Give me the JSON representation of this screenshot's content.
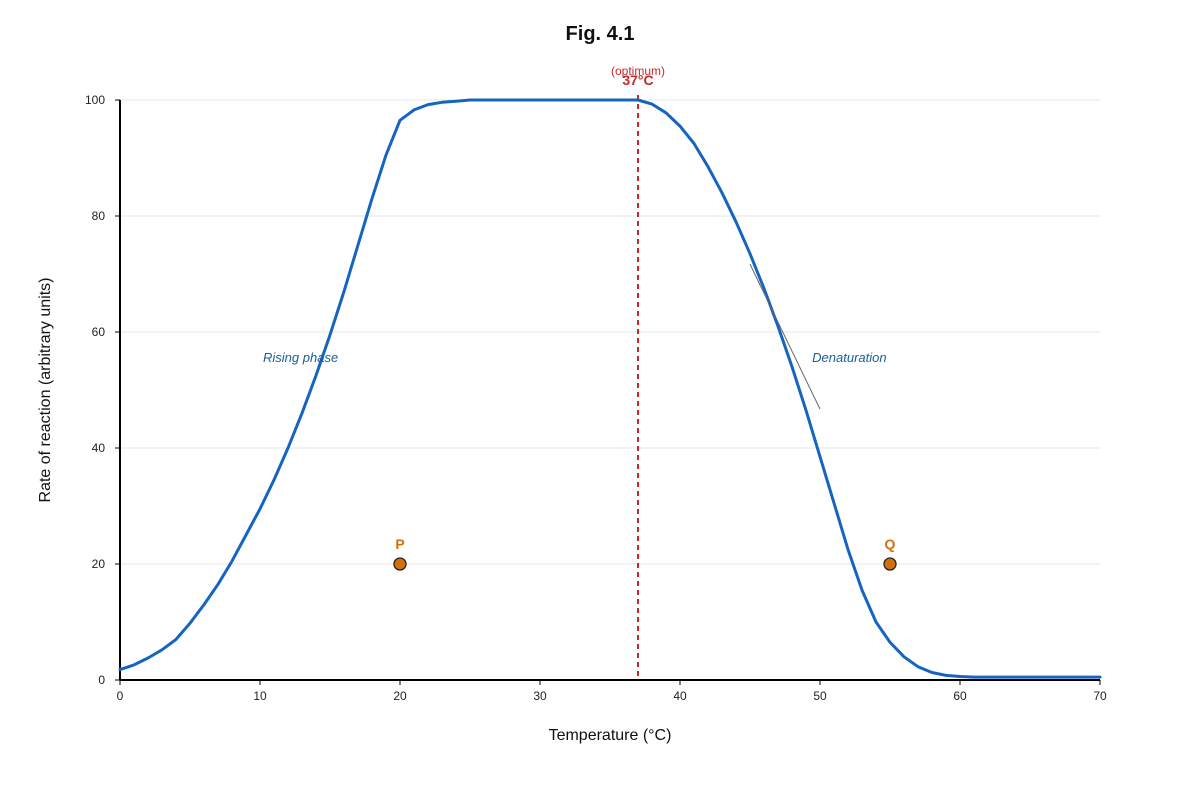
{
  "chart_data": {
    "type": "line",
    "title": "Fig. 4.1",
    "xlabel": "Temperature (°C)",
    "ylabel": "Rate of reaction (arbitrary units)",
    "xlim": [
      0,
      70
    ],
    "ylim": [
      0,
      100
    ],
    "x_ticks": [
      0,
      10,
      20,
      30,
      40,
      50,
      60,
      70
    ],
    "y_ticks": [
      0,
      20,
      40,
      60,
      80,
      100
    ],
    "grid": "horizontal",
    "legend": "none",
    "series": [
      {
        "color": "#1565c0",
        "x": [
          0,
          1,
          2,
          3,
          4,
          5,
          6,
          7,
          8,
          9,
          10,
          11,
          12,
          13,
          14,
          15,
          16,
          17,
          18,
          19,
          20,
          21,
          22,
          23,
          24,
          25,
          27,
          30,
          33,
          35,
          37,
          38,
          39,
          40,
          41,
          42,
          43,
          44,
          45,
          46,
          47,
          48,
          49,
          50,
          51,
          52,
          53,
          54,
          55,
          56,
          57,
          58,
          59,
          60,
          61,
          62,
          64,
          66,
          68,
          70
        ],
        "y": [
          1.8,
          2.6,
          3.8,
          5.2,
          7.0,
          9.8,
          13.0,
          16.5,
          20.5,
          25.0,
          29.5,
          34.5,
          40.0,
          46.0,
          52.5,
          59.5,
          67.0,
          75.0,
          83.0,
          90.5,
          96.5,
          98.3,
          99.2,
          99.6,
          99.8,
          100,
          100,
          100,
          100,
          100,
          100,
          99.3,
          97.8,
          95.5,
          92.5,
          88.5,
          84.0,
          79.0,
          73.5,
          67.5,
          61.0,
          54.0,
          46.5,
          38.5,
          30.5,
          22.5,
          15.5,
          10.0,
          6.5,
          4.0,
          2.3,
          1.3,
          0.8,
          0.6,
          0.5,
          0.5,
          0.5,
          0.5,
          0.5,
          0.5
        ]
      }
    ],
    "reference_line": {
      "x": 37,
      "label": "37°C",
      "sublabel": "(optimum)",
      "color": "#c62828"
    },
    "points": [
      {
        "label": "P",
        "x": 20,
        "y": 20,
        "color": "#d4700a"
      },
      {
        "label": "Q",
        "x": 55,
        "y": 20,
        "color": "#d4700a"
      }
    ],
    "annotations": [
      {
        "text": "Rising phase",
        "x": 12.9,
        "y": 55.5,
        "color": "#1a5e9a"
      },
      {
        "text": "Denaturation",
        "x": 52.1,
        "y": 55.5,
        "color": "#1a5e9a"
      }
    ],
    "annotation_line": {
      "x1": 45,
      "y1": 71.7,
      "x2": 50,
      "y2": 46.7,
      "color": "#666666"
    }
  }
}
